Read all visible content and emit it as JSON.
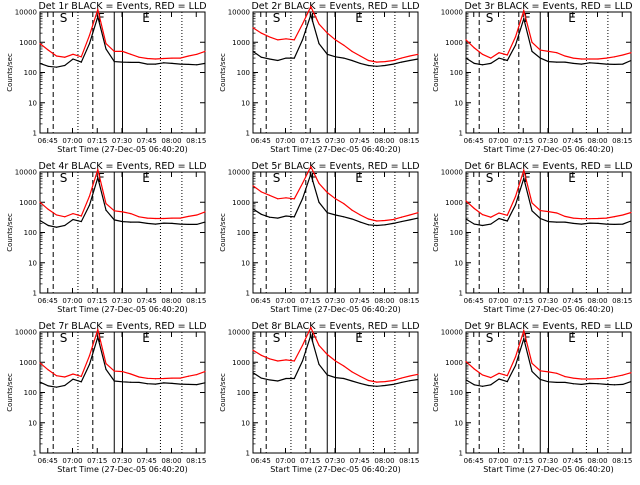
{
  "colors": {
    "background": "#ffffff",
    "events": "#000000",
    "lld": "#ff0000",
    "axis": "#000000"
  },
  "y_axis_label": "Counts/sec",
  "x_axis_label": "Start Time (27-Dec-05 06:40:20)",
  "x_tick_labels": [
    "06:45",
    "07:00",
    "07:15",
    "07:30",
    "07:45",
    "08:00",
    "08:15"
  ],
  "y_tick_labels": [
    "1",
    "10",
    "100",
    "1000",
    "10000"
  ],
  "interval_markers": [
    "S",
    "F",
    "E"
  ],
  "chart_data": [
    {
      "type": "line",
      "title": "Det 1r BLACK = Events, RED = LLD",
      "xlabel": "Start Time (27-Dec-05 06:40:20)",
      "ylabel": "Counts/sec",
      "x_minutes_after_start": [
        0,
        5,
        10,
        15,
        20,
        25,
        30,
        35,
        40,
        45,
        50,
        55,
        60,
        65,
        70,
        75,
        80,
        85,
        90,
        95,
        100
      ],
      "series": [
        {
          "name": "Events",
          "values": [
            200,
            160,
            150,
            170,
            280,
            220,
            900,
            7000,
            600,
            230,
            220,
            215,
            215,
            190,
            190,
            210,
            200,
            190,
            185,
            180,
            200
          ]
        },
        {
          "name": "LLD",
          "values": [
            900,
            550,
            350,
            320,
            400,
            330,
            1700,
            12000,
            900,
            500,
            500,
            400,
            320,
            290,
            280,
            290,
            300,
            300,
            350,
            400,
            500
          ]
        }
      ],
      "ylim": [
        1,
        10000
      ],
      "yscale": "log"
    },
    {
      "type": "line",
      "title": "Det 2r BLACK = Events, RED = LLD",
      "xlabel": "Start Time (27-Dec-05 06:40:20)",
      "ylabel": "Counts/sec",
      "x_minutes_after_start": [
        0,
        5,
        10,
        15,
        20,
        25,
        30,
        35,
        40,
        45,
        50,
        55,
        60,
        65,
        70,
        75,
        80,
        85,
        90,
        95,
        100
      ],
      "series": [
        {
          "name": "Events",
          "values": [
            500,
            320,
            280,
            250,
            300,
            300,
            1200,
            8000,
            900,
            400,
            330,
            300,
            250,
            200,
            170,
            160,
            170,
            190,
            220,
            250,
            280
          ]
        },
        {
          "name": "LLD",
          "values": [
            3000,
            2000,
            1500,
            1200,
            1300,
            1200,
            4000,
            15000,
            4000,
            2000,
            1200,
            800,
            500,
            350,
            250,
            220,
            230,
            250,
            300,
            350,
            400
          ]
        }
      ],
      "ylim": [
        1,
        10000
      ],
      "yscale": "log"
    },
    {
      "type": "line",
      "title": "Det 3r BLACK = Events, RED = LLD",
      "xlabel": "Start Time (27-Dec-05 06:40:20)",
      "ylabel": "Counts/sec",
      "x_minutes_after_start": [
        0,
        5,
        10,
        15,
        20,
        25,
        30,
        35,
        40,
        45,
        50,
        55,
        60,
        65,
        70,
        75,
        80,
        85,
        90,
        95,
        100
      ],
      "series": [
        {
          "name": "Events",
          "values": [
            300,
            200,
            180,
            200,
            300,
            250,
            800,
            6000,
            500,
            300,
            230,
            220,
            220,
            200,
            190,
            210,
            200,
            190,
            185,
            190,
            250
          ]
        },
        {
          "name": "LLD",
          "values": [
            1200,
            650,
            400,
            300,
            450,
            380,
            1500,
            11000,
            1000,
            550,
            500,
            450,
            350,
            300,
            280,
            280,
            280,
            300,
            330,
            380,
            450
          ]
        }
      ],
      "ylim": [
        1,
        10000
      ],
      "yscale": "log"
    },
    {
      "type": "line",
      "title": "Det 4r BLACK = Events, RED = LLD",
      "xlabel": "Start Time (27-Dec-05 06:40:20)",
      "ylabel": "Counts/sec",
      "x_minutes_after_start": [
        0,
        5,
        10,
        15,
        20,
        25,
        30,
        35,
        40,
        45,
        50,
        55,
        60,
        65,
        70,
        75,
        80,
        85,
        90,
        95,
        100
      ],
      "series": [
        {
          "name": "Events",
          "values": [
            250,
            170,
            150,
            170,
            270,
            230,
            800,
            6500,
            550,
            260,
            230,
            220,
            220,
            200,
            190,
            205,
            200,
            190,
            185,
            185,
            220
          ]
        },
        {
          "name": "LLD",
          "values": [
            1000,
            580,
            380,
            330,
            420,
            350,
            1600,
            12000,
            900,
            520,
            480,
            420,
            330,
            300,
            290,
            290,
            300,
            300,
            340,
            380,
            480
          ]
        }
      ],
      "ylim": [
        1,
        10000
      ],
      "yscale": "log"
    },
    {
      "type": "line",
      "title": "Det 5r BLACK = Events, RED = LLD",
      "xlabel": "Start Time (27-Dec-05 06:40:20)",
      "ylabel": "Counts/sec",
      "x_minutes_after_start": [
        0,
        5,
        10,
        15,
        20,
        25,
        30,
        35,
        40,
        45,
        50,
        55,
        60,
        65,
        70,
        75,
        80,
        85,
        90,
        95,
        100
      ],
      "series": [
        {
          "name": "Events",
          "values": [
            600,
            400,
            320,
            300,
            350,
            330,
            1300,
            8500,
            1000,
            450,
            380,
            330,
            280,
            220,
            180,
            170,
            180,
            200,
            230,
            260,
            300
          ]
        },
        {
          "name": "LLD",
          "values": [
            3500,
            2200,
            1700,
            1300,
            1400,
            1300,
            4200,
            15000,
            4200,
            2100,
            1300,
            900,
            550,
            380,
            280,
            240,
            250,
            270,
            320,
            380,
            450
          ]
        }
      ],
      "ylim": [
        1,
        10000
      ],
      "yscale": "log"
    },
    {
      "type": "line",
      "title": "Det 6r BLACK = Events, RED = LLD",
      "xlabel": "Start Time (27-Dec-05 06:40:20)",
      "ylabel": "Counts/sec",
      "x_minutes_after_start": [
        0,
        5,
        10,
        15,
        20,
        25,
        30,
        35,
        40,
        45,
        50,
        55,
        60,
        65,
        70,
        75,
        80,
        85,
        90,
        95,
        100
      ],
      "series": [
        {
          "name": "Events",
          "values": [
            280,
            190,
            170,
            190,
            290,
            240,
            820,
            6200,
            520,
            290,
            230,
            220,
            220,
            200,
            190,
            205,
            200,
            190,
            185,
            190,
            240
          ]
        },
        {
          "name": "LLD",
          "values": [
            1100,
            620,
            390,
            320,
            440,
            370,
            1550,
            11500,
            950,
            530,
            490,
            440,
            340,
            300,
            285,
            285,
            290,
            300,
            335,
            380,
            460
          ]
        }
      ],
      "ylim": [
        1,
        10000
      ],
      "yscale": "log"
    },
    {
      "type": "line",
      "title": "Det 7r BLACK = Events, RED = LLD",
      "xlabel": "Start Time (27-Dec-05 06:40:20)",
      "ylabel": "Counts/sec",
      "x_minutes_after_start": [
        0,
        5,
        10,
        15,
        20,
        25,
        30,
        35,
        40,
        45,
        50,
        55,
        60,
        65,
        70,
        75,
        80,
        85,
        90,
        95,
        100
      ],
      "series": [
        {
          "name": "Events",
          "values": [
            220,
            165,
            150,
            170,
            275,
            225,
            850,
            6800,
            580,
            240,
            225,
            218,
            215,
            195,
            190,
            208,
            200,
            190,
            185,
            182,
            210
          ]
        },
        {
          "name": "LLD",
          "values": [
            950,
            560,
            360,
            325,
            410,
            340,
            1650,
            12000,
            900,
            510,
            490,
            410,
            325,
            295,
            285,
            290,
            300,
            300,
            345,
            390,
            490
          ]
        }
      ],
      "ylim": [
        1,
        10000
      ],
      "yscale": "log"
    },
    {
      "type": "line",
      "title": "Det 8r BLACK = Events, RED = LLD",
      "xlabel": "Start Time (27-Dec-05 06:40:20)",
      "ylabel": "Counts/sec",
      "x_minutes_after_start": [
        0,
        5,
        10,
        15,
        20,
        25,
        30,
        35,
        40,
        45,
        50,
        55,
        60,
        65,
        70,
        75,
        80,
        85,
        90,
        95,
        100
      ],
      "series": [
        {
          "name": "Events",
          "values": [
            450,
            300,
            260,
            240,
            290,
            290,
            1100,
            7800,
            850,
            380,
            310,
            290,
            240,
            200,
            170,
            160,
            170,
            185,
            215,
            245,
            270
          ]
        },
        {
          "name": "LLD",
          "values": [
            2500,
            1700,
            1300,
            1100,
            1200,
            1100,
            3600,
            14000,
            3600,
            1800,
            1100,
            750,
            480,
            340,
            250,
            220,
            230,
            250,
            300,
            350,
            400
          ]
        }
      ],
      "ylim": [
        1,
        10000
      ],
      "yscale": "log"
    },
    {
      "type": "line",
      "title": "Det 9r BLACK = Events, RED = LLD",
      "xlabel": "Start Time (27-Dec-05 06:40:20)",
      "ylabel": "Counts/sec",
      "x_minutes_after_start": [
        0,
        5,
        10,
        15,
        20,
        25,
        30,
        35,
        40,
        45,
        50,
        55,
        60,
        65,
        70,
        75,
        80,
        85,
        90,
        95,
        100
      ],
      "series": [
        {
          "name": "Events",
          "values": [
            260,
            180,
            160,
            180,
            280,
            230,
            780,
            6000,
            500,
            270,
            225,
            215,
            215,
            195,
            185,
            200,
            195,
            185,
            180,
            185,
            230
          ]
        },
        {
          "name": "LLD",
          "values": [
            1050,
            600,
            380,
            310,
            430,
            360,
            1500,
            11000,
            920,
            520,
            480,
            430,
            335,
            300,
            280,
            280,
            285,
            295,
            330,
            375,
            450
          ]
        }
      ],
      "ylim": [
        1,
        10000
      ],
      "yscale": "log"
    }
  ]
}
